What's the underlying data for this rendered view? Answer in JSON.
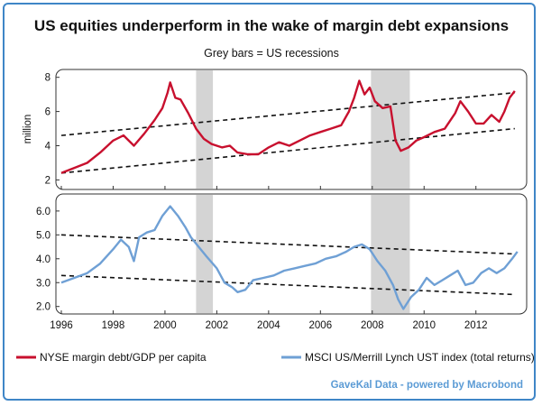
{
  "chart_data": {
    "type": "line",
    "title": "US equities underperform in the wake of margin debt expansions",
    "subtitle": "Grey bars = US recessions",
    "source": "GaveKal Data - powered by Macrobond",
    "colors": {
      "margin": "#c8102e",
      "msci": "#6fa0d5",
      "recession": "#d4d4d4",
      "trend": "#111111"
    },
    "x_ticks": [
      "1996",
      "1998",
      "2000",
      "2002",
      "2004",
      "2006",
      "2008",
      "2010",
      "2012"
    ],
    "xlim": [
      1996,
      2013.75
    ],
    "recessions": [
      [
        2001.2,
        2001.85
      ],
      [
        2007.95,
        2009.45
      ]
    ],
    "panels": [
      {
        "id": "margin",
        "ylabel": "million",
        "ylim": [
          1.6,
          8.3
        ],
        "y_ticks": [
          "2",
          "4",
          "6",
          "8"
        ],
        "series": [
          {
            "name": "NYSE margin debt/GDP per capita",
            "x": [
              1996.0,
              1996.5,
              1997.0,
              1997.5,
              1998.0,
              1998.4,
              1998.8,
              1999.2,
              1999.6,
              1999.9,
              2000.1,
              2000.2,
              2000.4,
              2000.6,
              2000.9,
              2001.2,
              2001.5,
              2001.8,
              2002.2,
              2002.5,
              2002.8,
              2003.2,
              2003.6,
              2004.0,
              2004.4,
              2004.8,
              2005.2,
              2005.6,
              2006.0,
              2006.4,
              2006.8,
              2007.1,
              2007.3,
              2007.5,
              2007.7,
              2007.9,
              2008.1,
              2008.4,
              2008.7,
              2008.9,
              2009.1,
              2009.4,
              2009.7,
              2010.0,
              2010.4,
              2010.8,
              2011.2,
              2011.4,
              2011.7,
              2012.0,
              2012.3,
              2012.6,
              2012.9,
              2013.1,
              2013.3,
              2013.5
            ],
            "y": [
              2.4,
              2.7,
              3.0,
              3.6,
              4.3,
              4.6,
              4.0,
              4.7,
              5.5,
              6.2,
              7.1,
              7.7,
              6.8,
              6.7,
              5.9,
              5.0,
              4.4,
              4.1,
              3.9,
              4.0,
              3.6,
              3.5,
              3.5,
              3.9,
              4.2,
              4.0,
              4.3,
              4.6,
              4.8,
              5.0,
              5.2,
              6.0,
              6.8,
              7.8,
              7.0,
              7.4,
              6.6,
              6.2,
              6.3,
              4.3,
              3.7,
              3.9,
              4.3,
              4.5,
              4.8,
              5.0,
              5.9,
              6.6,
              6.0,
              5.3,
              5.3,
              5.8,
              5.4,
              6.0,
              6.8,
              7.2
            ]
          }
        ],
        "trendlines": [
          {
            "x": [
              1996,
              2013.5
            ],
            "y": [
              4.6,
              7.1
            ]
          },
          {
            "x": [
              1996,
              2013.5
            ],
            "y": [
              2.4,
              5.0
            ]
          }
        ]
      },
      {
        "id": "msci",
        "ylim": [
          1.8,
          6.6
        ],
        "y_ticks": [
          "2.0",
          "3.0",
          "4.0",
          "5.0",
          "6.0"
        ],
        "series": [
          {
            "name": "MSCI US/Merrill Lynch UST index (total returns)",
            "x": [
              1996.0,
              1996.5,
              1997.0,
              1997.5,
              1998.0,
              1998.3,
              1998.6,
              1998.8,
              1999.0,
              1999.3,
              1999.6,
              1999.9,
              2000.2,
              2000.5,
              2000.8,
              2001.0,
              2001.3,
              2001.6,
              2002.0,
              2002.3,
              2002.6,
              2002.8,
              2003.1,
              2003.4,
              2003.8,
              2004.2,
              2004.6,
              2005.0,
              2005.4,
              2005.8,
              2006.2,
              2006.6,
              2007.0,
              2007.3,
              2007.6,
              2007.9,
              2008.2,
              2008.5,
              2008.8,
              2009.0,
              2009.2,
              2009.5,
              2009.8,
              2010.1,
              2010.4,
              2010.7,
              2011.0,
              2011.3,
              2011.6,
              2011.9,
              2012.2,
              2012.5,
              2012.8,
              2013.1,
              2013.4,
              2013.6
            ],
            "y": [
              3.0,
              3.2,
              3.4,
              3.8,
              4.4,
              4.8,
              4.5,
              3.9,
              4.9,
              5.1,
              5.2,
              5.8,
              6.2,
              5.8,
              5.3,
              4.9,
              4.5,
              4.1,
              3.6,
              3.0,
              2.8,
              2.6,
              2.7,
              3.1,
              3.2,
              3.3,
              3.5,
              3.6,
              3.7,
              3.8,
              4.0,
              4.1,
              4.3,
              4.5,
              4.6,
              4.4,
              3.9,
              3.5,
              2.9,
              2.3,
              1.9,
              2.4,
              2.7,
              3.2,
              2.9,
              3.1,
              3.3,
              3.5,
              2.9,
              3.0,
              3.4,
              3.6,
              3.4,
              3.6,
              4.0,
              4.3
            ]
          }
        ],
        "trendlines": [
          {
            "x": [
              1996,
              2013.5
            ],
            "y": [
              5.0,
              4.2
            ]
          },
          {
            "x": [
              1996,
              2013.5
            ],
            "y": [
              3.3,
              2.5
            ]
          }
        ]
      }
    ]
  }
}
